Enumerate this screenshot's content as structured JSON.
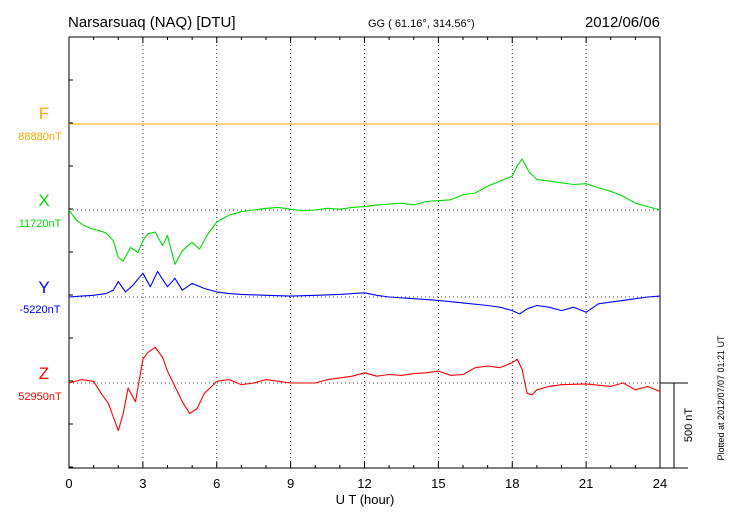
{
  "header": {
    "station": "Narsarsuaq (NAQ)  [DTU]",
    "coords": "GG ( 61.16°, 314.56°)",
    "date": "2012/06/06"
  },
  "plotted_note": "Plotted at 2012/07/07 01:21  UT",
  "scale_label": "500 nT",
  "chart_data": {
    "type": "line",
    "xlabel": "U T (hour)",
    "ylabel": "",
    "x_ticks": [
      "0",
      "3",
      "6",
      "9",
      "12",
      "15",
      "18",
      "21",
      "24"
    ],
    "xlim": [
      0,
      24
    ],
    "grid": true,
    "scale_nT": 500,
    "series": [
      {
        "name": "F",
        "baseline_label": "88880nT",
        "color": "#ffa500",
        "x": [
          0,
          24
        ],
        "y": [
          0,
          0
        ]
      },
      {
        "name": "X",
        "baseline_label": "11720nT",
        "color": "#00dd00",
        "x": [
          0,
          0.3,
          0.6,
          0.9,
          1.2,
          1.5,
          1.8,
          2.0,
          2.2,
          2.5,
          2.8,
          3.0,
          3.2,
          3.5,
          3.8,
          4.0,
          4.3,
          4.6,
          5.0,
          5.3,
          5.6,
          6.0,
          6.5,
          7.0,
          7.5,
          8.0,
          8.5,
          9.0,
          9.5,
          10.0,
          10.5,
          11.0,
          11.5,
          12.0,
          12.5,
          13.0,
          13.5,
          14.0,
          14.5,
          15.0,
          15.5,
          16.0,
          16.5,
          17.0,
          17.5,
          18.0,
          18.2,
          18.4,
          18.7,
          19.0,
          19.5,
          20.0,
          20.5,
          21.0,
          21.5,
          22.0,
          22.5,
          23.0,
          23.5,
          24.0
        ],
        "y": [
          0,
          -60,
          -90,
          -110,
          -120,
          -135,
          -180,
          -280,
          -300,
          -220,
          -250,
          -180,
          -140,
          -130,
          -210,
          -150,
          -320,
          -240,
          -190,
          -230,
          -150,
          -70,
          -30,
          -10,
          0,
          10,
          15,
          5,
          -5,
          0,
          10,
          5,
          15,
          20,
          30,
          35,
          40,
          30,
          50,
          55,
          60,
          90,
          100,
          140,
          170,
          200,
          260,
          300,
          220,
          180,
          170,
          160,
          150,
          155,
          130,
          110,
          80,
          40,
          20,
          0
        ]
      },
      {
        "name": "Y",
        "baseline_label": "-5220nT",
        "color": "#0000ff",
        "x": [
          0,
          0.5,
          1.0,
          1.5,
          1.8,
          2.0,
          2.3,
          2.6,
          3.0,
          3.3,
          3.6,
          4.0,
          4.3,
          4.6,
          5.0,
          5.5,
          6.0,
          6.5,
          7.0,
          8.0,
          9.0,
          10.0,
          11.0,
          11.5,
          12.0,
          12.5,
          13.0,
          14.0,
          15.0,
          16.0,
          17.0,
          17.5,
          18.0,
          18.3,
          18.6,
          19.0,
          19.5,
          20.0,
          20.5,
          21.0,
          21.5,
          22.0,
          22.5,
          23.0,
          23.5,
          24.0
        ],
        "y": [
          0,
          5,
          10,
          20,
          40,
          90,
          30,
          70,
          140,
          60,
          150,
          60,
          110,
          40,
          80,
          50,
          30,
          20,
          15,
          10,
          5,
          10,
          15,
          20,
          25,
          10,
          0,
          -10,
          -20,
          -35,
          -50,
          -60,
          -80,
          -100,
          -70,
          -50,
          -60,
          -80,
          -60,
          -90,
          -40,
          -30,
          -20,
          -10,
          0,
          5
        ]
      },
      {
        "name": "Z",
        "baseline_label": "52950nT",
        "color": "#ff0000",
        "x": [
          0,
          0.5,
          1.0,
          1.3,
          1.6,
          1.8,
          2.0,
          2.2,
          2.4,
          2.7,
          3.0,
          3.2,
          3.5,
          3.8,
          4.0,
          4.3,
          4.6,
          4.9,
          5.2,
          5.5,
          5.8,
          6.0,
          6.5,
          7.0,
          7.5,
          8.0,
          9.0,
          10.0,
          10.5,
          11.0,
          11.5,
          12.0,
          12.5,
          13.0,
          13.5,
          14.0,
          14.5,
          15.0,
          15.5,
          16.0,
          16.5,
          17.0,
          17.5,
          18.0,
          18.2,
          18.4,
          18.6,
          18.8,
          19.0,
          19.5,
          20.0,
          21.0,
          22.0,
          22.5,
          23.0,
          23.5,
          24.0
        ],
        "y": [
          0,
          20,
          10,
          -60,
          -120,
          -200,
          -280,
          -180,
          -30,
          -110,
          140,
          180,
          210,
          150,
          70,
          -20,
          -110,
          -180,
          -150,
          -60,
          -20,
          10,
          20,
          -10,
          0,
          20,
          0,
          0,
          20,
          30,
          40,
          60,
          40,
          50,
          45,
          55,
          60,
          70,
          45,
          50,
          90,
          100,
          90,
          120,
          140,
          80,
          -60,
          -70,
          -40,
          -20,
          -10,
          -5,
          -20,
          0,
          -40,
          -20,
          -50
        ]
      }
    ]
  }
}
